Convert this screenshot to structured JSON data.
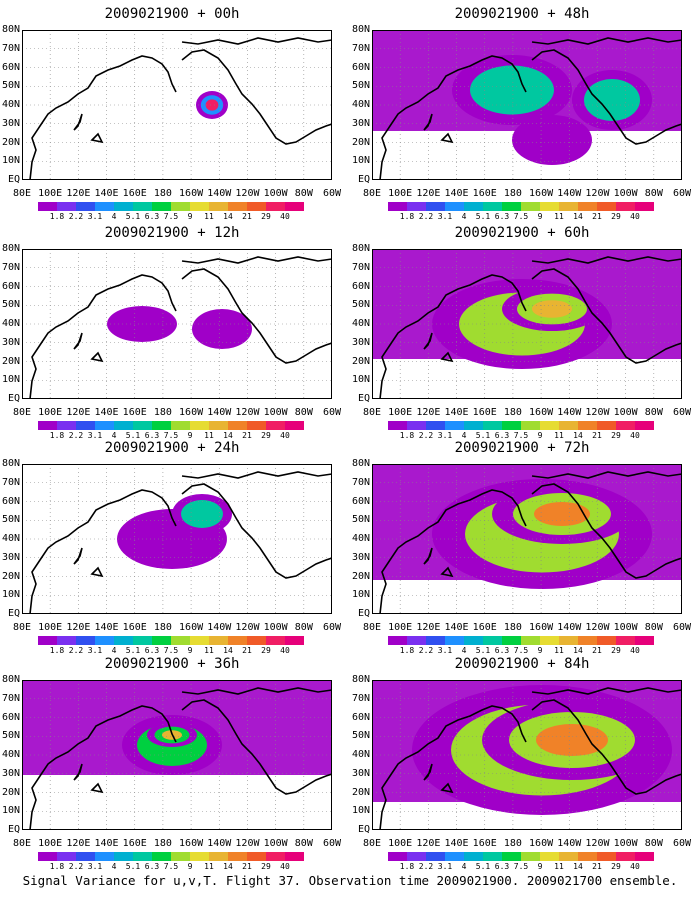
{
  "panels": [
    {
      "title": "2009021900 + 00h",
      "intensity": 0.0
    },
    {
      "title": "2009021900 + 48h",
      "intensity": 0.55
    },
    {
      "title": "2009021900 + 12h",
      "intensity": 0.2
    },
    {
      "title": "2009021900 + 60h",
      "intensity": 0.7
    },
    {
      "title": "2009021900 + 24h",
      "intensity": 0.3
    },
    {
      "title": "2009021900 + 72h",
      "intensity": 0.8
    },
    {
      "title": "2009021900 + 36h",
      "intensity": 0.45
    },
    {
      "title": "2009021900 + 84h",
      "intensity": 0.9
    }
  ],
  "lat_labels": [
    "80N",
    "70N",
    "60N",
    "50N",
    "40N",
    "30N",
    "20N",
    "10N",
    "EQ"
  ],
  "lon_labels": [
    "80E",
    "100E",
    "120E",
    "140E",
    "160E",
    "180",
    "160W",
    "140W",
    "120W",
    "100W",
    "80W",
    "60W"
  ],
  "colorbar": {
    "labels": [
      "1.8",
      "2.2",
      "3.1",
      "4",
      "5.1",
      "6.3",
      "7.5",
      "9",
      "11",
      "14",
      "21",
      "29",
      "40"
    ],
    "colors": [
      "#a000c8",
      "#7a30f0",
      "#3050f0",
      "#1e90ff",
      "#00b0d0",
      "#00c8a0",
      "#00d040",
      "#a0dc30",
      "#e6dc32",
      "#e8b432",
      "#f08228",
      "#f05a28",
      "#f01e64",
      "#e6007a"
    ]
  },
  "caption": "Signal Variance for u,v,T. Flight 37. Observation time 2009021900. 2009021700 ensemble."
}
